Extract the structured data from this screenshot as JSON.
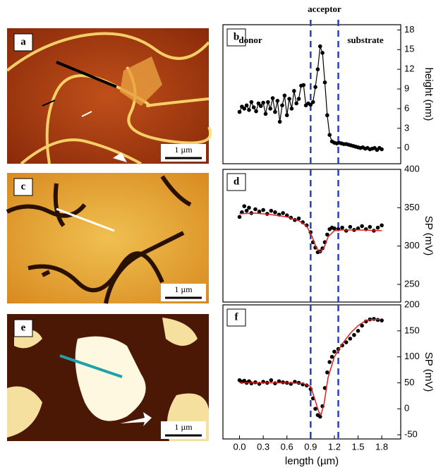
{
  "images": [
    {
      "label": "a",
      "scale_bar": "1 µm"
    },
    {
      "label": "c",
      "scale_bar": "1 µm"
    },
    {
      "label": "e",
      "scale_bar": "1 µm"
    }
  ],
  "chart_data": [
    {
      "type": "line",
      "label": "b",
      "ylabel": "height (nm)",
      "ylim": [
        -2.4,
        18.8
      ],
      "yticks": [
        0,
        3,
        6,
        9,
        12,
        15,
        18
      ],
      "xlim": [
        -0.21,
        2.04
      ],
      "vlines": [
        0.9,
        1.25
      ],
      "annotations": [
        "acceptor",
        "donor",
        "substrate"
      ],
      "series": [
        {
          "color": "#000000",
          "mode": "markers+lines",
          "x": [
            0,
            0.03,
            0.06,
            0.09,
            0.12,
            0.15,
            0.18,
            0.21,
            0.24,
            0.27,
            0.3,
            0.33,
            0.36,
            0.39,
            0.42,
            0.45,
            0.48,
            0.51,
            0.54,
            0.57,
            0.6,
            0.63,
            0.66,
            0.69,
            0.72,
            0.75,
            0.78,
            0.81,
            0.84,
            0.87,
            0.9,
            0.93,
            0.96,
            0.99,
            1.02,
            1.05,
            1.08,
            1.11,
            1.14,
            1.17,
            1.2,
            1.23,
            1.26,
            1.29,
            1.32,
            1.35,
            1.38,
            1.41,
            1.44,
            1.47,
            1.5,
            1.53,
            1.56,
            1.59,
            1.62,
            1.65,
            1.68,
            1.71,
            1.74,
            1.77,
            1.8
          ],
          "values": [
            5.5,
            6.3,
            6.0,
            6.5,
            5.8,
            7.0,
            6.2,
            5.6,
            6.8,
            6.4,
            6.9,
            5.2,
            7.0,
            6.0,
            7.6,
            5.5,
            7.2,
            4.0,
            6.5,
            8.0,
            5.0,
            7.5,
            6.0,
            8.7,
            6.8,
            7.5,
            9.5,
            9.6,
            6.5,
            6.8,
            6.6,
            7.0,
            9.3,
            12.0,
            15.5,
            14.5,
            10.0,
            5.0,
            2.0,
            1.0,
            0.8,
            0.7,
            0.8,
            0.7,
            0.6,
            0.6,
            0.5,
            0.4,
            0.3,
            0.2,
            0.1,
            0.0,
            0.1,
            -0.1,
            0.0,
            -0.2,
            -0.1,
            0.0,
            -0.3,
            0.0,
            -0.2
          ]
        }
      ]
    },
    {
      "type": "line",
      "label": "d",
      "ylabel": "SP (mV)",
      "ylim": [
        227,
        400
      ],
      "yticks": [
        250,
        300,
        350,
        400
      ],
      "xlim": [
        -0.21,
        2.04
      ],
      "vlines": [
        0.9,
        1.25
      ],
      "series": [
        {
          "color": "#000000",
          "mode": "markers",
          "x": [
            0,
            0.03,
            0.06,
            0.09,
            0.12,
            0.15,
            0.2,
            0.25,
            0.3,
            0.35,
            0.4,
            0.45,
            0.5,
            0.55,
            0.6,
            0.65,
            0.7,
            0.75,
            0.8,
            0.85,
            0.9,
            0.93,
            0.96,
            0.99,
            1.02,
            1.05,
            1.08,
            1.11,
            1.14,
            1.17,
            1.2,
            1.25,
            1.3,
            1.35,
            1.4,
            1.45,
            1.5,
            1.55,
            1.6,
            1.65,
            1.7,
            1.75,
            1.8
          ],
          "values": [
            338,
            344,
            352,
            346,
            350,
            343,
            348,
            345,
            347,
            342,
            346,
            344,
            341,
            343,
            340,
            337,
            334,
            336,
            331,
            327,
            318,
            305,
            298,
            292,
            293,
            297,
            305,
            315,
            322,
            324,
            323,
            322,
            324,
            320,
            325,
            321,
            323,
            326,
            322,
            325,
            320,
            324,
            327
          ]
        },
        {
          "color": "#e02020",
          "mode": "lines",
          "x": [
            0,
            0.2,
            0.4,
            0.6,
            0.75,
            0.85,
            0.92,
            0.97,
            1.02,
            1.07,
            1.12,
            1.2,
            1.3,
            1.5,
            1.8
          ],
          "values": [
            342,
            343,
            341,
            338,
            333,
            326,
            312,
            298,
            292,
            298,
            312,
            320,
            321,
            321,
            320
          ]
        }
      ]
    },
    {
      "type": "line",
      "label": "f",
      "ylabel": "SP (mV)",
      "xlabel": "length (µm)",
      "ylim": [
        -58,
        200
      ],
      "yticks": [
        -50,
        0,
        50,
        100,
        150,
        200
      ],
      "xlim": [
        -0.21,
        2.04
      ],
      "vlines": [
        0.9,
        1.25
      ],
      "xticks": [
        {
          "value": 0,
          "label": "0.0"
        },
        0.3,
        0.6,
        0.9,
        1.2,
        1.5,
        1.8
      ],
      "series": [
        {
          "color": "#000000",
          "mode": "markers",
          "x": [
            0,
            0.03,
            0.06,
            0.09,
            0.12,
            0.15,
            0.2,
            0.25,
            0.3,
            0.35,
            0.4,
            0.45,
            0.5,
            0.55,
            0.6,
            0.65,
            0.7,
            0.75,
            0.8,
            0.85,
            0.9,
            0.93,
            0.96,
            0.99,
            1.02,
            1.05,
            1.08,
            1.11,
            1.14,
            1.17,
            1.2,
            1.25,
            1.3,
            1.35,
            1.4,
            1.45,
            1.5,
            1.55,
            1.6,
            1.65,
            1.7,
            1.75,
            1.8
          ],
          "values": [
            55,
            52,
            54,
            50,
            53,
            49,
            51,
            48,
            52,
            50,
            55,
            49,
            53,
            51,
            50,
            48,
            52,
            50,
            47,
            45,
            38,
            20,
            0,
            -12,
            -15,
            5,
            40,
            70,
            90,
            100,
            110,
            115,
            122,
            128,
            135,
            142,
            150,
            160,
            168,
            172,
            173,
            171,
            170
          ]
        },
        {
          "color": "#e02020",
          "mode": "lines",
          "x": [
            0,
            0.3,
            0.6,
            0.8,
            0.9,
            0.95,
            1.0,
            1.03,
            1.07,
            1.12,
            1.2,
            1.3,
            1.4,
            1.5,
            1.6,
            1.7,
            1.78
          ],
          "values": [
            50,
            50,
            50,
            49,
            43,
            20,
            -5,
            -12,
            10,
            60,
            100,
            125,
            145,
            160,
            170,
            172,
            172
          ]
        }
      ]
    }
  ]
}
